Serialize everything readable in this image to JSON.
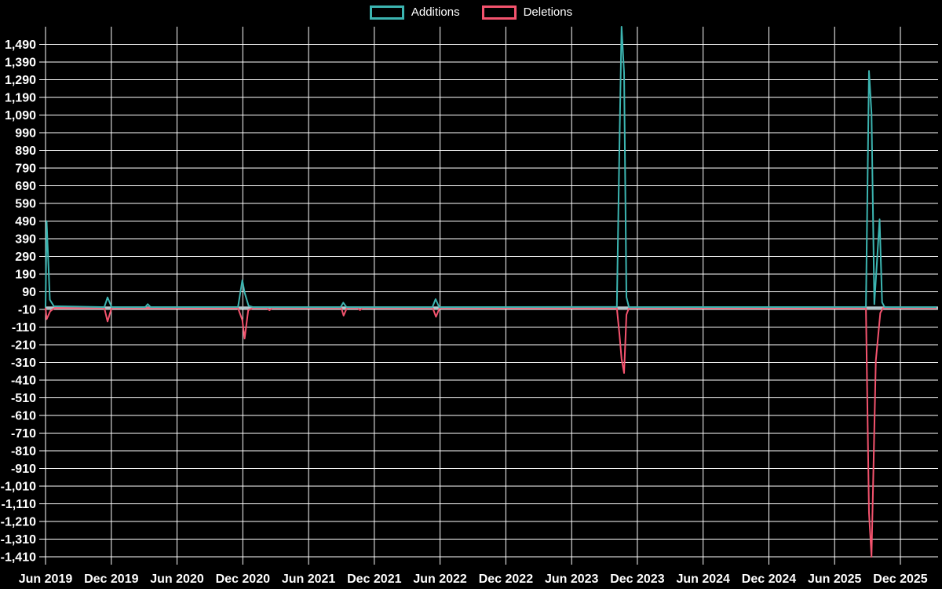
{
  "colors": {
    "background": "#000000",
    "grid": "#ffffff",
    "axis_text": "#ffffff",
    "zero_axis_line": "#b3c7cd",
    "additions": "#3cb5b1",
    "deletions": "#f4536e"
  },
  "legend": {
    "items": [
      {
        "label": "Additions",
        "color": "#3cb5b1"
      },
      {
        "label": "Deletions",
        "color": "#f4536e"
      }
    ]
  },
  "chart_data": {
    "type": "line",
    "title": "",
    "xlabel": "",
    "ylabel": "",
    "grid": true,
    "legend_position": "top-center",
    "x_axis": {
      "tick_labels": [
        "Jun 2019",
        "Dec 2019",
        "Jun 2020",
        "Dec 2020",
        "Jun 2021",
        "Dec 2021",
        "Jun 2022",
        "Dec 2022",
        "Jun 2023",
        "Dec 2023",
        "Jun 2024",
        "Dec 2024",
        "Jun 2025",
        "Dec 2025"
      ],
      "tick_months_since_start": [
        0,
        6,
        12,
        18,
        24,
        30,
        36,
        42,
        48,
        54,
        60,
        66,
        72,
        78
      ],
      "range_start": "2019-06-01",
      "range_end": "2026-03-14"
    },
    "y_axis": {
      "tick_labels": [
        "1,490",
        "1,390",
        "1,290",
        "1,190",
        "1,090",
        "990",
        "890",
        "790",
        "690",
        "590",
        "490",
        "390",
        "290",
        "190",
        "90",
        "-10",
        "-110",
        "-210",
        "-310",
        "-410",
        "-510",
        "-610",
        "-710",
        "-810",
        "-910",
        "-1,010",
        "-1,110",
        "-1,210",
        "-1,310",
        "-1,410"
      ],
      "tick_values": [
        1490,
        1390,
        1290,
        1190,
        1090,
        990,
        890,
        790,
        690,
        590,
        490,
        390,
        290,
        190,
        90,
        -10,
        -110,
        -210,
        -310,
        -410,
        -510,
        -610,
        -710,
        -810,
        -910,
        -1010,
        -1110,
        -1210,
        -1310,
        -1410
      ],
      "ymax": 1590,
      "ymin": -1410,
      "tick_step": 100
    },
    "series": [
      {
        "name": "Additions",
        "color": "#3cb5b1",
        "points": [
          [
            "2019-06-01",
            2
          ],
          [
            "2019-06-04",
            490
          ],
          [
            "2019-06-13",
            45
          ],
          [
            "2019-06-24",
            8
          ],
          [
            "2019-11-12",
            3
          ],
          [
            "2019-11-21",
            58
          ],
          [
            "2019-12-02",
            3
          ],
          [
            "2020-03-04",
            3
          ],
          [
            "2020-03-11",
            20
          ],
          [
            "2020-03-19",
            3
          ],
          [
            "2020-11-18",
            4
          ],
          [
            "2020-11-30",
            155
          ],
          [
            "2020-12-06",
            85
          ],
          [
            "2020-12-17",
            10
          ],
          [
            "2020-12-29",
            3
          ],
          [
            "2021-08-29",
            3
          ],
          [
            "2021-09-06",
            28
          ],
          [
            "2021-09-15",
            3
          ],
          [
            "2022-05-10",
            3
          ],
          [
            "2022-05-19",
            48
          ],
          [
            "2022-05-29",
            3
          ],
          [
            "2023-10-05",
            4
          ],
          [
            "2023-10-12",
            920
          ],
          [
            "2023-10-18",
            1590
          ],
          [
            "2023-10-25",
            1330
          ],
          [
            "2023-11-01",
            60
          ],
          [
            "2023-11-08",
            3
          ],
          [
            "2025-08-27",
            4
          ],
          [
            "2025-09-05",
            1340
          ],
          [
            "2025-09-12",
            1100
          ],
          [
            "2025-09-20",
            20
          ],
          [
            "2025-10-04",
            500
          ],
          [
            "2025-10-11",
            30
          ],
          [
            "2025-10-18",
            3
          ],
          [
            "2026-03-10",
            3
          ]
        ]
      },
      {
        "name": "Deletions",
        "color": "#f4536e",
        "points": [
          [
            "2019-06-01",
            -2
          ],
          [
            "2019-06-04",
            -65
          ],
          [
            "2019-06-14",
            -20
          ],
          [
            "2019-06-26",
            -2
          ],
          [
            "2019-11-12",
            -2
          ],
          [
            "2019-11-21",
            -78
          ],
          [
            "2019-12-02",
            -2
          ],
          [
            "2020-11-18",
            -3
          ],
          [
            "2020-11-30",
            -70
          ],
          [
            "2020-12-06",
            -175
          ],
          [
            "2020-12-16",
            -15
          ],
          [
            "2020-12-29",
            -2
          ],
          [
            "2021-02-08",
            -2
          ],
          [
            "2021-02-14",
            -15
          ],
          [
            "2021-02-22",
            -2
          ],
          [
            "2021-08-31",
            -2
          ],
          [
            "2021-09-07",
            -45
          ],
          [
            "2021-09-16",
            -2
          ],
          [
            "2021-10-16",
            -2
          ],
          [
            "2021-10-22",
            -14
          ],
          [
            "2021-10-29",
            -2
          ],
          [
            "2022-05-11",
            -2
          ],
          [
            "2022-05-20",
            -52
          ],
          [
            "2022-05-30",
            -2
          ],
          [
            "2023-10-05",
            -3
          ],
          [
            "2023-10-12",
            -150
          ],
          [
            "2023-10-18",
            -290
          ],
          [
            "2023-10-25",
            -370
          ],
          [
            "2023-11-01",
            -40
          ],
          [
            "2023-11-08",
            -2
          ],
          [
            "2025-08-27",
            -3
          ],
          [
            "2025-09-05",
            -1160
          ],
          [
            "2025-09-12",
            -1410
          ],
          [
            "2025-09-24",
            -300
          ],
          [
            "2025-10-06",
            -30
          ],
          [
            "2025-10-14",
            -2
          ],
          [
            "2026-03-10",
            -2
          ]
        ]
      }
    ]
  }
}
